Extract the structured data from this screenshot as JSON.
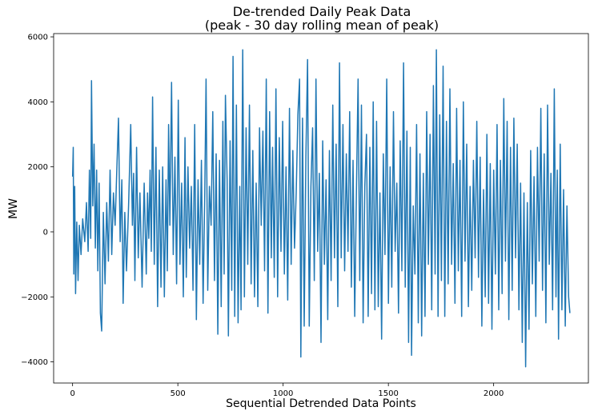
{
  "chart_data": {
    "type": "line",
    "title": "De-trended Daily Peak Data",
    "subtitle": "(peak - 30 day rolling mean of peak)",
    "xlabel": "Sequential Detrended Data Points",
    "ylabel": "MW",
    "xlim": [
      -90,
      2450
    ],
    "ylim": [
      -4650,
      6100
    ],
    "xticks": [
      0,
      500,
      1000,
      1500,
      2000
    ],
    "yticks": [
      -4000,
      -2000,
      0,
      2000,
      4000,
      6000
    ],
    "xtick_labels": [
      "0",
      "500",
      "1000",
      "1500",
      "2000"
    ],
    "ytick_labels": [
      "−4000",
      "−2000",
      "0",
      "2000",
      "4000",
      "6000"
    ],
    "grid": false,
    "series": [
      {
        "color": "#1f77b4",
        "points": [
          [
            0,
            1700
          ],
          [
            3,
            2600
          ],
          [
            6,
            -1300
          ],
          [
            10,
            1400
          ],
          [
            14,
            -1900
          ],
          [
            20,
            300
          ],
          [
            26,
            -1500
          ],
          [
            32,
            200
          ],
          [
            40,
            -700
          ],
          [
            48,
            400
          ],
          [
            58,
            -300
          ],
          [
            66,
            900
          ],
          [
            74,
            -600
          ],
          [
            80,
            1900
          ],
          [
            86,
            -200
          ],
          [
            90,
            4650
          ],
          [
            96,
            800
          ],
          [
            102,
            2700
          ],
          [
            108,
            -500
          ],
          [
            114,
            1900
          ],
          [
            120,
            -1200
          ],
          [
            126,
            1500
          ],
          [
            132,
            -2500
          ],
          [
            138,
            -3050
          ],
          [
            146,
            600
          ],
          [
            154,
            -1600
          ],
          [
            162,
            900
          ],
          [
            170,
            -900
          ],
          [
            178,
            1900
          ],
          [
            186,
            -700
          ],
          [
            194,
            1200
          ],
          [
            202,
            200
          ],
          [
            210,
            1900
          ],
          [
            218,
            3500
          ],
          [
            226,
            -300
          ],
          [
            234,
            1600
          ],
          [
            240,
            -2200
          ],
          [
            248,
            600
          ],
          [
            256,
            -1200
          ],
          [
            266,
            800
          ],
          [
            276,
            3300
          ],
          [
            284,
            200
          ],
          [
            290,
            1800
          ],
          [
            296,
            -1500
          ],
          [
            304,
            2600
          ],
          [
            312,
            -800
          ],
          [
            320,
            1200
          ],
          [
            330,
            -1700
          ],
          [
            340,
            1500
          ],
          [
            350,
            -1300
          ],
          [
            356,
            1200
          ],
          [
            362,
            -200
          ],
          [
            368,
            1900
          ],
          [
            374,
            -600
          ],
          [
            380,
            4150
          ],
          [
            388,
            -1000
          ],
          [
            396,
            2600
          ],
          [
            404,
            -2300
          ],
          [
            412,
            1900
          ],
          [
            420,
            -1700
          ],
          [
            428,
            2000
          ],
          [
            436,
            -2000
          ],
          [
            444,
            1600
          ],
          [
            450,
            -1200
          ],
          [
            456,
            3300
          ],
          [
            462,
            200
          ],
          [
            470,
            4600
          ],
          [
            478,
            -700
          ],
          [
            486,
            2300
          ],
          [
            494,
            -1600
          ],
          [
            502,
            4050
          ],
          [
            510,
            -1000
          ],
          [
            518,
            1500
          ],
          [
            526,
            -2000
          ],
          [
            534,
            2900
          ],
          [
            540,
            -1400
          ],
          [
            548,
            2000
          ],
          [
            556,
            -500
          ],
          [
            564,
            1400
          ],
          [
            572,
            -1800
          ],
          [
            580,
            3300
          ],
          [
            588,
            -2700
          ],
          [
            596,
            1600
          ],
          [
            604,
            -1000
          ],
          [
            612,
            2200
          ],
          [
            620,
            -2200
          ],
          [
            628,
            1200
          ],
          [
            634,
            4700
          ],
          [
            642,
            -1800
          ],
          [
            650,
            1400
          ],
          [
            658,
            200
          ],
          [
            666,
            3700
          ],
          [
            674,
            -1500
          ],
          [
            682,
            2400
          ],
          [
            690,
            -3150
          ],
          [
            698,
            2200
          ],
          [
            706,
            -2300
          ],
          [
            714,
            3400
          ],
          [
            720,
            -1300
          ],
          [
            726,
            4200
          ],
          [
            734,
            1600
          ],
          [
            740,
            -3200
          ],
          [
            748,
            2800
          ],
          [
            756,
            -1800
          ],
          [
            762,
            5400
          ],
          [
            770,
            -2600
          ],
          [
            778,
            3900
          ],
          [
            786,
            -2800
          ],
          [
            794,
            1400
          ],
          [
            800,
            -2400
          ],
          [
            808,
            5600
          ],
          [
            816,
            -2000
          ],
          [
            824,
            3200
          ],
          [
            832,
            -1000
          ],
          [
            840,
            3900
          ],
          [
            848,
            -1600
          ],
          [
            856,
            2500
          ],
          [
            864,
            -2000
          ],
          [
            872,
            1500
          ],
          [
            880,
            -2300
          ],
          [
            888,
            3200
          ],
          [
            896,
            200
          ],
          [
            904,
            3100
          ],
          [
            912,
            -1200
          ],
          [
            920,
            4700
          ],
          [
            928,
            -2500
          ],
          [
            936,
            3700
          ],
          [
            944,
            -800
          ],
          [
            950,
            2600
          ],
          [
            958,
            -1400
          ],
          [
            966,
            4400
          ],
          [
            974,
            -2000
          ],
          [
            982,
            2900
          ],
          [
            990,
            -600
          ],
          [
            998,
            3400
          ],
          [
            1006,
            -1300
          ],
          [
            1014,
            2000
          ],
          [
            1022,
            -2100
          ],
          [
            1030,
            3800
          ],
          [
            1038,
            -1000
          ],
          [
            1046,
            2500
          ],
          [
            1054,
            -500
          ],
          [
            1062,
            1200
          ],
          [
            1070,
            3600
          ],
          [
            1078,
            4700
          ],
          [
            1084,
            -3850
          ],
          [
            1092,
            3500
          ],
          [
            1100,
            -2900
          ],
          [
            1108,
            2300
          ],
          [
            1116,
            5300
          ],
          [
            1124,
            -2900
          ],
          [
            1132,
            1400
          ],
          [
            1140,
            3200
          ],
          [
            1148,
            -1500
          ],
          [
            1156,
            4700
          ],
          [
            1164,
            -600
          ],
          [
            1172,
            1800
          ],
          [
            1180,
            -3400
          ],
          [
            1188,
            2800
          ],
          [
            1196,
            -1000
          ],
          [
            1204,
            1600
          ],
          [
            1212,
            -2700
          ],
          [
            1220,
            2500
          ],
          [
            1228,
            -1500
          ],
          [
            1236,
            3900
          ],
          [
            1244,
            -800
          ],
          [
            1252,
            2700
          ],
          [
            1260,
            -2300
          ],
          [
            1268,
            5200
          ],
          [
            1276,
            -800
          ],
          [
            1284,
            3300
          ],
          [
            1292,
            -1200
          ],
          [
            1300,
            2400
          ],
          [
            1308,
            -600
          ],
          [
            1316,
            3700
          ],
          [
            1324,
            -1700
          ],
          [
            1332,
            2200
          ],
          [
            1340,
            -2600
          ],
          [
            1348,
            1200
          ],
          [
            1356,
            4700
          ],
          [
            1364,
            -1500
          ],
          [
            1372,
            3900
          ],
          [
            1380,
            -2800
          ],
          [
            1388,
            1400
          ],
          [
            1396,
            3000
          ],
          [
            1404,
            -2600
          ],
          [
            1412,
            2600
          ],
          [
            1420,
            -1900
          ],
          [
            1428,
            4000
          ],
          [
            1436,
            -2400
          ],
          [
            1444,
            3400
          ],
          [
            1452,
            -2300
          ],
          [
            1460,
            1200
          ],
          [
            1468,
            -3300
          ],
          [
            1476,
            2400
          ],
          [
            1484,
            -700
          ],
          [
            1492,
            4700
          ],
          [
            1500,
            -2200
          ],
          [
            1508,
            2000
          ],
          [
            1516,
            -1700
          ],
          [
            1524,
            3700
          ],
          [
            1532,
            -600
          ],
          [
            1540,
            1500
          ],
          [
            1548,
            -2500
          ],
          [
            1556,
            2800
          ],
          [
            1564,
            -1200
          ],
          [
            1572,
            5200
          ],
          [
            1580,
            -1700
          ],
          [
            1588,
            3100
          ],
          [
            1596,
            -3400
          ],
          [
            1604,
            2600
          ],
          [
            1610,
            -3800
          ],
          [
            1618,
            800
          ],
          [
            1626,
            -1300
          ],
          [
            1634,
            3300
          ],
          [
            1642,
            -2800
          ],
          [
            1650,
            2400
          ],
          [
            1658,
            -3200
          ],
          [
            1666,
            1800
          ],
          [
            1674,
            -2600
          ],
          [
            1682,
            3700
          ],
          [
            1690,
            -1000
          ],
          [
            1698,
            3000
          ],
          [
            1706,
            -2400
          ],
          [
            1714,
            4500
          ],
          [
            1722,
            -1300
          ],
          [
            1728,
            5600
          ],
          [
            1736,
            -2600
          ],
          [
            1744,
            3600
          ],
          [
            1752,
            -1500
          ],
          [
            1760,
            5100
          ],
          [
            1768,
            -2600
          ],
          [
            1776,
            3400
          ],
          [
            1784,
            -1600
          ],
          [
            1792,
            4400
          ],
          [
            1800,
            -1000
          ],
          [
            1808,
            2100
          ],
          [
            1816,
            -2200
          ],
          [
            1824,
            3800
          ],
          [
            1832,
            -1200
          ],
          [
            1840,
            2200
          ],
          [
            1848,
            -2600
          ],
          [
            1856,
            4000
          ],
          [
            1864,
            -900
          ],
          [
            1872,
            2700
          ],
          [
            1880,
            -2300
          ],
          [
            1888,
            1400
          ],
          [
            1896,
            -1800
          ],
          [
            1904,
            2200
          ],
          [
            1912,
            -800
          ],
          [
            1920,
            3400
          ],
          [
            1928,
            -1400
          ],
          [
            1936,
            2300
          ],
          [
            1944,
            -2900
          ],
          [
            1952,
            1300
          ],
          [
            1960,
            -2000
          ],
          [
            1968,
            3000
          ],
          [
            1976,
            -2200
          ],
          [
            1984,
            2100
          ],
          [
            1992,
            -3000
          ],
          [
            2000,
            1900
          ],
          [
            2008,
            -1300
          ],
          [
            2016,
            3300
          ],
          [
            2024,
            -2400
          ],
          [
            2032,
            2200
          ],
          [
            2040,
            -1900
          ],
          [
            2048,
            4100
          ],
          [
            2056,
            -900
          ],
          [
            2064,
            3400
          ],
          [
            2072,
            -2700
          ],
          [
            2080,
            2600
          ],
          [
            2088,
            -1800
          ],
          [
            2096,
            3500
          ],
          [
            2104,
            -800
          ],
          [
            2112,
            2700
          ],
          [
            2120,
            -2400
          ],
          [
            2128,
            1500
          ],
          [
            2136,
            -3400
          ],
          [
            2144,
            1200
          ],
          [
            2152,
            -4150
          ],
          [
            2160,
            900
          ],
          [
            2168,
            -3000
          ],
          [
            2176,
            2500
          ],
          [
            2184,
            -1600
          ],
          [
            2192,
            1700
          ],
          [
            2200,
            -2600
          ],
          [
            2208,
            2600
          ],
          [
            2216,
            -900
          ],
          [
            2224,
            3800
          ],
          [
            2232,
            -1800
          ],
          [
            2240,
            2400
          ],
          [
            2248,
            -2800
          ],
          [
            2256,
            3900
          ],
          [
            2264,
            -1000
          ],
          [
            2272,
            1800
          ],
          [
            2280,
            -2400
          ],
          [
            2288,
            4400
          ],
          [
            2296,
            -2000
          ],
          [
            2302,
            1900
          ],
          [
            2308,
            -3300
          ],
          [
            2316,
            2700
          ],
          [
            2324,
            -2400
          ],
          [
            2332,
            1300
          ],
          [
            2340,
            -2900
          ],
          [
            2348,
            800
          ],
          [
            2356,
            -2000
          ],
          [
            2362,
            -2500
          ]
        ]
      }
    ]
  }
}
